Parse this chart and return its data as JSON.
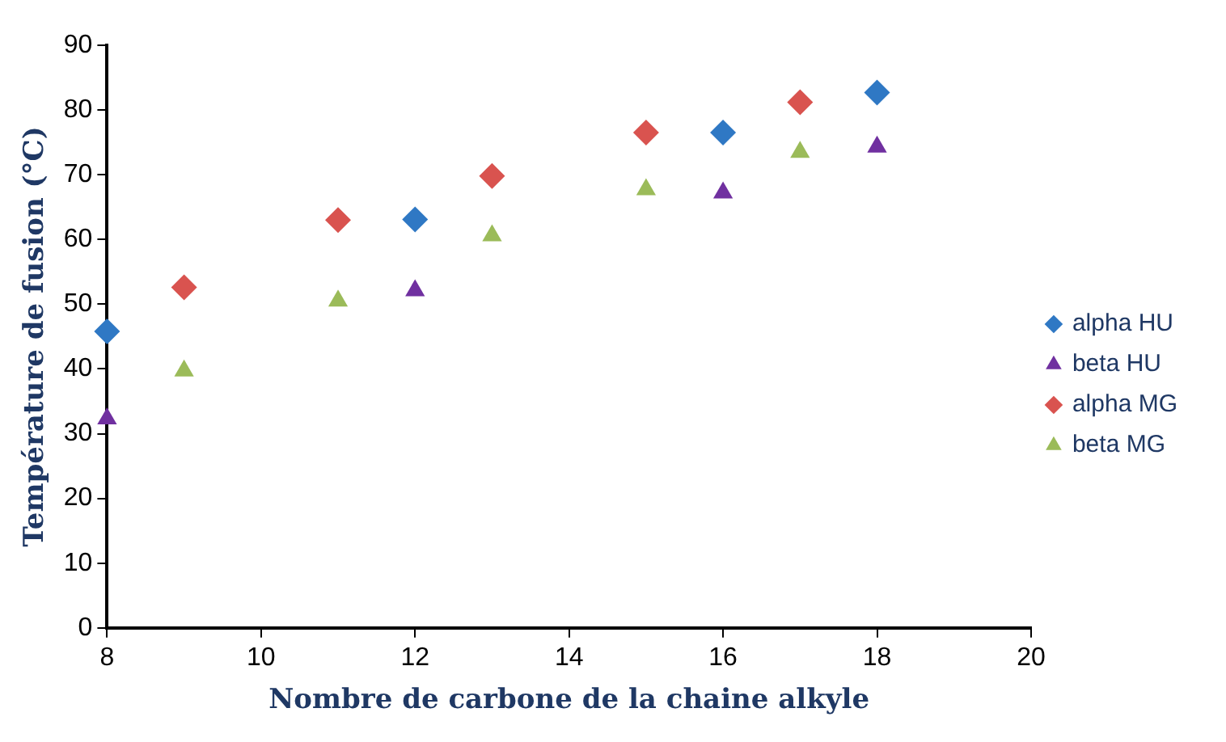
{
  "chart_data": {
    "type": "scatter",
    "xlabel": "Nombre de carbone de la chaine alkyle",
    "ylabel": "Température de fusion (°C)",
    "xlim": [
      8,
      20
    ],
    "xticks": [
      8,
      10,
      12,
      14,
      16,
      18,
      20
    ],
    "ylim": [
      0,
      90
    ],
    "yticks": [
      0,
      10,
      20,
      30,
      40,
      50,
      60,
      70,
      80,
      90
    ],
    "grid": false,
    "legend": "right",
    "series": [
      {
        "name": "alpha HU",
        "color": "#2f78c4",
        "marker": "diamond",
        "x": [
          8,
          12,
          16,
          18
        ],
        "values": [
          45.8,
          63.1,
          76.5,
          82.7
        ]
      },
      {
        "name": "beta HU",
        "color": "#7030a0",
        "marker": "triangle",
        "x": [
          8,
          12,
          16,
          18
        ],
        "values": [
          32.3,
          52.1,
          67.2,
          74.3
        ]
      },
      {
        "name": "alpha MG",
        "color": "#d9534f",
        "marker": "diamond",
        "x": [
          9,
          11,
          13,
          15,
          17
        ],
        "values": [
          52.6,
          63,
          69.8,
          76.5,
          81.2
        ]
      },
      {
        "name": "beta MG",
        "color": "#9bbb59",
        "marker": "triangle",
        "x": [
          9,
          11,
          13,
          15,
          17
        ],
        "values": [
          39.7,
          50.5,
          60.6,
          67.7,
          73.5
        ]
      }
    ]
  }
}
